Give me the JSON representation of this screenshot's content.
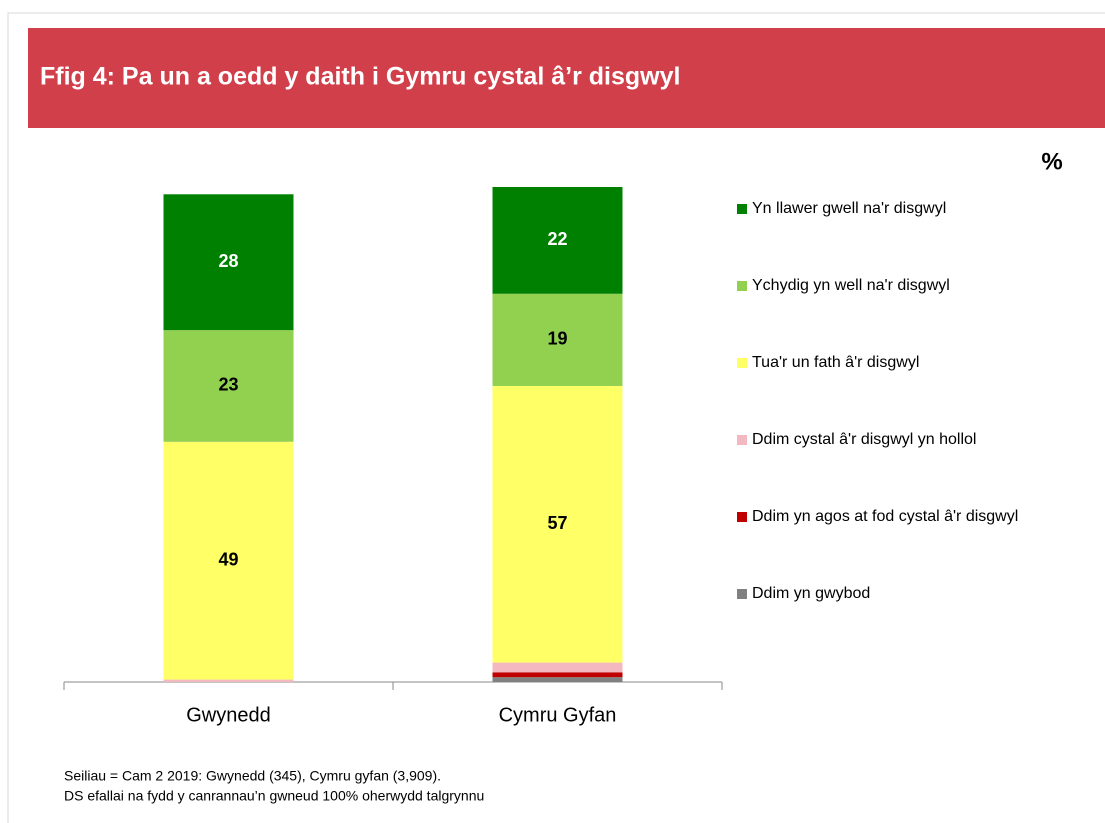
{
  "chart_data": {
    "type": "stacked_bar",
    "title": "Ffig 4: Pa un a oedd y daith i Gymru cystal â’r disgwyl",
    "unit": "%",
    "categories": [
      "Gwynedd",
      "Cymru Gyfan"
    ],
    "series": [
      {
        "name": "Ddim yn gwybod",
        "color": "#808080",
        "values": [
          0,
          1
        ]
      },
      {
        "name": "Ddim yn agos at fod cystal â'r disgwyl",
        "color": "#c00000",
        "values": [
          0,
          1
        ]
      },
      {
        "name": "Ddim cystal â'r disgwyl yn hollol",
        "color": "#f4b8c0",
        "values": [
          0.5,
          2
        ]
      },
      {
        "name": "Tua'r un fath â'r disgwyl",
        "color": "#ffff66",
        "values": [
          49,
          57
        ]
      },
      {
        "name": "Ychydig yn well na'r disgwyl",
        "color": "#92d050",
        "values": [
          23,
          19
        ]
      },
      {
        "name": "Yn llawer gwell na'r disgwyl",
        "color": "#008000",
        "values": [
          28,
          22
        ]
      }
    ],
    "footnotes": [
      "Seiliau = Cam 2 2019: Gwynedd (345), Cymru gyfan (3,909).",
      "DS efallai na fydd y canrannau’n gwneud 100% oherwydd talgrynnu"
    ]
  }
}
